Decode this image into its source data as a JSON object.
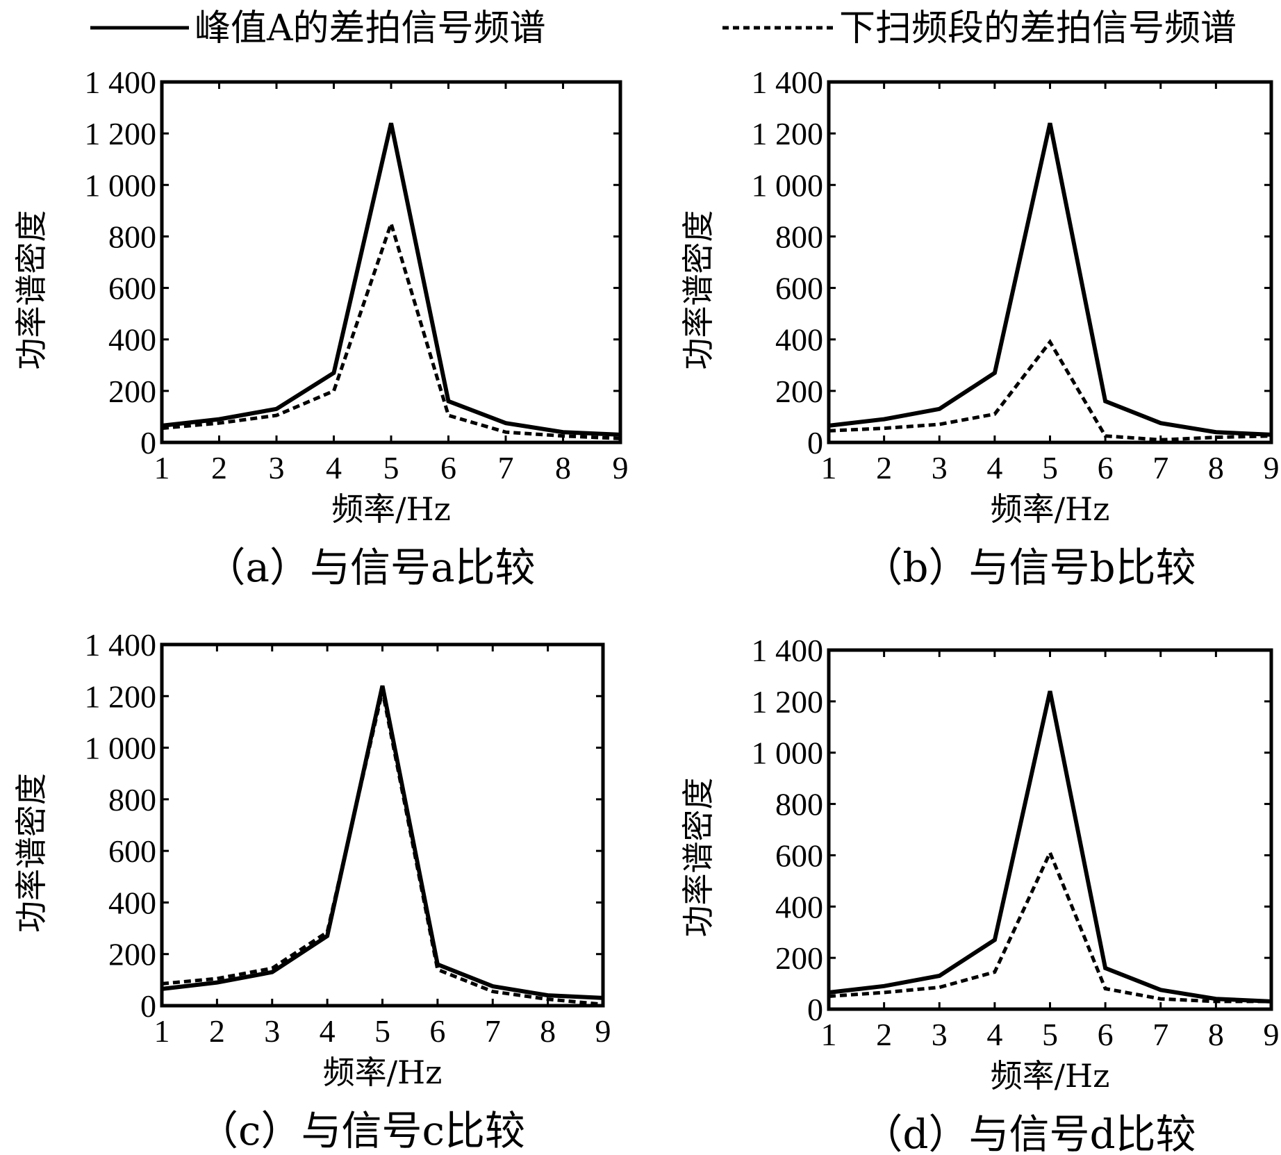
{
  "legend": {
    "solid_label": "峰值A的差拍信号频谱",
    "dashed_label": "下扫频段的差拍信号频谱"
  },
  "chart_data": [
    {
      "type": "line",
      "caption": "（a）与信号a比较",
      "xlabel": "频率/Hz",
      "ylabel": "功率谱密度",
      "xlim": [
        1,
        9
      ],
      "ylim": [
        0,
        1400
      ],
      "xticks": [
        "1",
        "2",
        "3",
        "4",
        "5",
        "6",
        "7",
        "8",
        "9"
      ],
      "yticks": [
        "0",
        "200",
        "400",
        "600",
        "800",
        "1 000",
        "1 200",
        "1 400"
      ],
      "grid": false,
      "x": [
        1,
        2,
        3,
        4,
        5,
        6,
        7,
        8,
        9
      ],
      "series": [
        {
          "name": "峰值A的差拍信号频谱",
          "style": "solid",
          "values": [
            65,
            90,
            130,
            270,
            1240,
            160,
            75,
            40,
            30
          ]
        },
        {
          "name": "下扫频段的差拍信号频谱",
          "style": "dashed",
          "values": [
            55,
            75,
            105,
            200,
            850,
            105,
            40,
            25,
            15
          ]
        }
      ]
    },
    {
      "type": "line",
      "caption": "（b）与信号b比较",
      "xlabel": "频率/Hz",
      "ylabel": "功率谱密度",
      "xlim": [
        1,
        9
      ],
      "ylim": [
        0,
        1400
      ],
      "xticks": [
        "1",
        "2",
        "3",
        "4",
        "5",
        "6",
        "7",
        "8",
        "9"
      ],
      "yticks": [
        "0",
        "200",
        "400",
        "600",
        "800",
        "1 000",
        "1 200",
        "1 400"
      ],
      "grid": false,
      "x": [
        1,
        2,
        3,
        4,
        5,
        6,
        7,
        8,
        9
      ],
      "series": [
        {
          "name": "峰值A的差拍信号频谱",
          "style": "solid",
          "values": [
            65,
            90,
            130,
            270,
            1240,
            160,
            75,
            40,
            30
          ]
        },
        {
          "name": "下扫频段的差拍信号频谱",
          "style": "dashed",
          "values": [
            45,
            55,
            70,
            110,
            390,
            25,
            10,
            20,
            25
          ]
        }
      ]
    },
    {
      "type": "line",
      "caption": "（c）与信号c比较",
      "xlabel": "频率/Hz",
      "ylabel": "功率谱密度",
      "xlim": [
        1,
        9
      ],
      "ylim": [
        0,
        1400
      ],
      "xticks": [
        "1",
        "2",
        "3",
        "4",
        "5",
        "6",
        "7",
        "8",
        "9"
      ],
      "yticks": [
        "0",
        "200",
        "400",
        "600",
        "800",
        "1 000",
        "1 200",
        "1 400"
      ],
      "grid": false,
      "x": [
        1,
        2,
        3,
        4,
        5,
        6,
        7,
        8,
        9
      ],
      "series": [
        {
          "name": "峰值A的差拍信号频谱",
          "style": "solid",
          "values": [
            65,
            90,
            130,
            270,
            1240,
            160,
            75,
            40,
            30
          ]
        },
        {
          "name": "下扫频段的差拍信号频谱",
          "style": "dashed",
          "values": [
            85,
            105,
            145,
            285,
            1220,
            140,
            55,
            25,
            5
          ]
        }
      ]
    },
    {
      "type": "line",
      "caption": "（d）与信号d比较",
      "xlabel": "频率/Hz",
      "ylabel": "功率谱密度",
      "xlim": [
        1,
        9
      ],
      "ylim": [
        0,
        1400
      ],
      "xticks": [
        "1",
        "2",
        "3",
        "4",
        "5",
        "6",
        "7",
        "8",
        "9"
      ],
      "yticks": [
        "0",
        "200",
        "400",
        "600",
        "800",
        "1 000",
        "1 200",
        "1 400"
      ],
      "grid": false,
      "x": [
        1,
        2,
        3,
        4,
        5,
        6,
        7,
        8,
        9
      ],
      "series": [
        {
          "name": "峰值A的差拍信号频谱",
          "style": "solid",
          "values": [
            65,
            90,
            130,
            270,
            1240,
            160,
            75,
            40,
            30
          ]
        },
        {
          "name": "下扫频段的差拍信号频谱",
          "style": "dashed",
          "values": [
            50,
            65,
            85,
            145,
            610,
            80,
            40,
            30,
            30
          ]
        }
      ]
    }
  ]
}
